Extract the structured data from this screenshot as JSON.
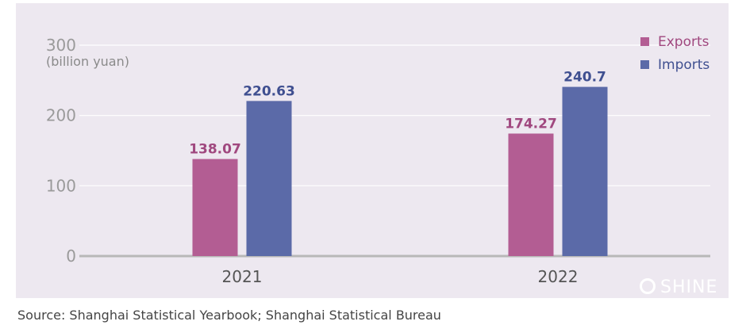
{
  "chart_data": {
    "type": "bar",
    "ylabel": "(billion yuan)",
    "ylim": [
      0,
      300
    ],
    "yticks": [
      "0",
      "100",
      "200",
      "300"
    ],
    "grid": true,
    "legend_position": "top-right",
    "categories": [
      "2021",
      "2022"
    ],
    "series": [
      {
        "name": "Exports",
        "color": "#b35d93",
        "label_color": "#a0487f",
        "values": [
          138.07,
          174.27
        ],
        "labels": [
          "138.07",
          "174.27"
        ]
      },
      {
        "name": "Imports",
        "color": "#5b6aa8",
        "label_color": "#3f4f90",
        "values": [
          220.63,
          240.7
        ],
        "labels": [
          "220.63",
          "240.7"
        ]
      }
    ]
  },
  "source": "Source: Shanghai Statistical Yearbook; Shanghai Statistical Bureau",
  "watermark": {
    "text": "SHINE",
    "icon": "logo-icon"
  }
}
